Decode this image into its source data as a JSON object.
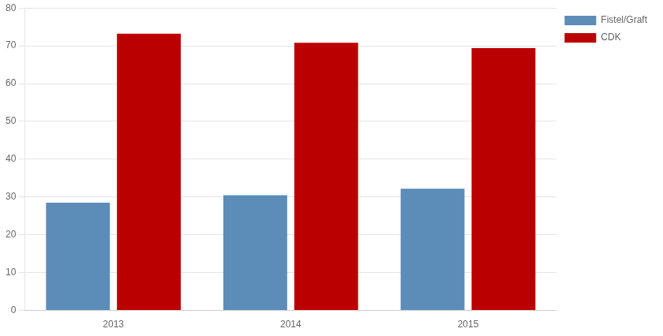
{
  "chart_data": {
    "type": "bar",
    "categories": [
      "2013",
      "2014",
      "2015"
    ],
    "series": [
      {
        "name": "Fistel/Graft",
        "color": "#5b8db8",
        "values": [
          28.5,
          30.5,
          32.2
        ]
      },
      {
        "name": "CDK",
        "color": "#bb0000",
        "values": [
          73.2,
          70.8,
          69.4
        ]
      }
    ],
    "ylim": [
      0,
      80
    ],
    "yticks": [
      0,
      10,
      20,
      30,
      40,
      50,
      60,
      70,
      80
    ],
    "grid": true,
    "legend": "right"
  }
}
